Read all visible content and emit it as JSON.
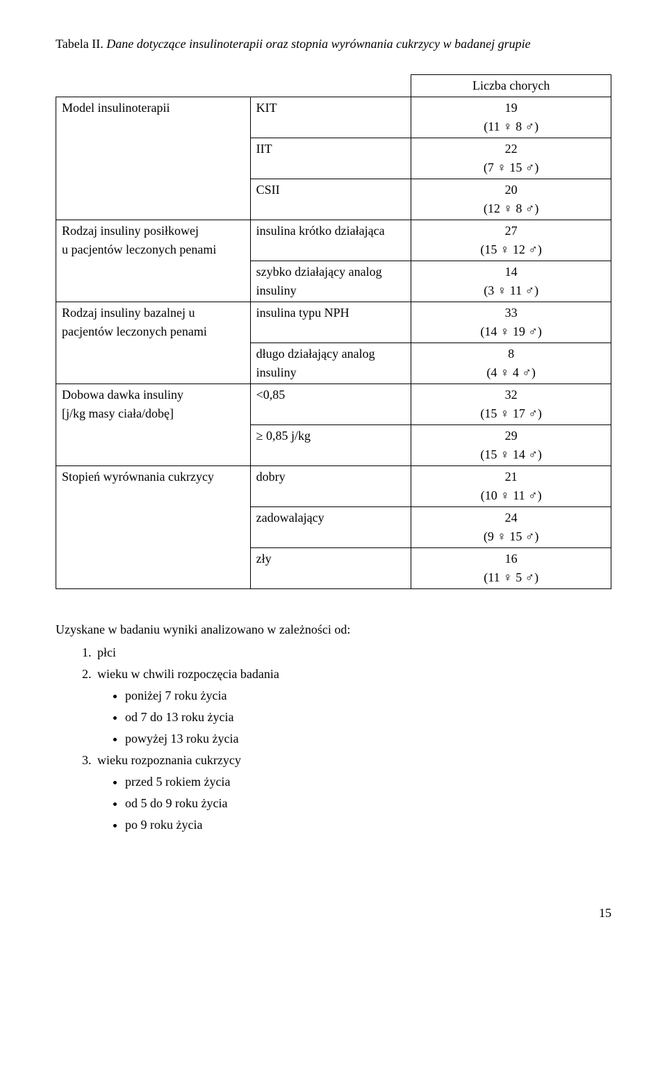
{
  "caption": {
    "label": "Tabela II.",
    "text": " Dane dotyczące insulinoterapii oraz stopnia wyrównania cukrzycy w badanej grupie"
  },
  "table": {
    "header_right": "Liczba  chorych",
    "rows": [
      {
        "left": "Model insulinoterapii",
        "mid": "KIT",
        "val1": "19",
        "val2": "(11 ♀   8 ♂)",
        "left_rowspan": 3
      },
      {
        "mid": "IIT",
        "val1": "22",
        "val2": "(7 ♀   15 ♂)"
      },
      {
        "mid": "CSII",
        "val1": "20",
        "val2": "(12 ♀   8 ♂)"
      },
      {
        "left": "Rodzaj insuliny posiłkowej\nu pacjentów leczonych penami",
        "mid": "insulina krótko działająca",
        "val1": "27",
        "val2": "(15 ♀  12 ♂)",
        "left_rowspan": 2
      },
      {
        "mid": "szybko działający analog insuliny",
        "val1": "14",
        "val2": "(3 ♀   11 ♂)"
      },
      {
        "left": "Rodzaj insuliny bazalnej u pacjentów leczonych penami",
        "mid": "insulina typu NPH",
        "val1": "33",
        "val2": "(14 ♀   19 ♂)",
        "left_rowspan": 2
      },
      {
        "mid": "długo działający analog insuliny",
        "val1": "8",
        "val2": "(4 ♀  4 ♂)"
      },
      {
        "left": "Dobowa dawka insuliny\n[j/kg masy ciała/dobę]",
        "mid": "<0,85",
        "val1": "32",
        "val2": "(15 ♀   17 ♂)",
        "left_rowspan": 2
      },
      {
        "mid": "≥ 0,85 j/kg",
        "val1": "29",
        "val2": "(15 ♀   14 ♂)"
      },
      {
        "left": "Stopień wyrównania cukrzycy",
        "mid": "dobry",
        "val1": "21",
        "val2": "(10 ♀   11 ♂)",
        "left_rowspan": 3
      },
      {
        "mid": "zadowalający",
        "val1": "24",
        "val2": "(9 ♀  15 ♂)"
      },
      {
        "mid": "zły",
        "val1": "16",
        "val2": "(11 ♀  5 ♂)"
      }
    ]
  },
  "list_intro": "Uzyskane w badaniu wyniki analizowano w zależności od:",
  "ordered": [
    {
      "text": "płci"
    },
    {
      "text": "wieku w chwili rozpoczęcia badania",
      "sub": [
        "poniżej 7 roku życia",
        "od 7 do 13 roku życia",
        "powyżej 13 roku życia"
      ]
    },
    {
      "text": "wieku rozpoznania cukrzycy",
      "sub": [
        "przed 5 rokiem życia",
        "od 5 do 9 roku życia",
        "po 9 roku życia"
      ]
    }
  ],
  "page_number": "15"
}
